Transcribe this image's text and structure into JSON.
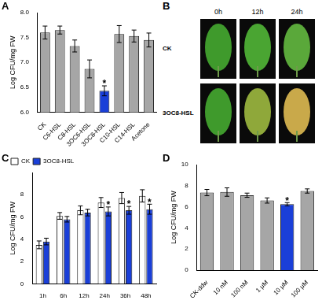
{
  "chart_data": [
    {
      "label": "A",
      "type": "bar",
      "categories": [
        "CK",
        "C6-HSL",
        "C8-HSL",
        "3OC6-HSL",
        "3OC8-HSL",
        "C10-HSL",
        "C14-HSL",
        "Acetone"
      ],
      "values": [
        7.6,
        7.65,
        7.33,
        6.87,
        6.43,
        7.57,
        7.53,
        7.45
      ],
      "errors": [
        0.13,
        0.08,
        0.12,
        0.18,
        0.1,
        0.17,
        0.12,
        0.14
      ],
      "significance": [
        null,
        null,
        null,
        null,
        "*",
        null,
        null,
        null
      ],
      "colors": [
        "#a6a6a6",
        "#a6a6a6",
        "#a6a6a6",
        "#a6a6a6",
        "#1a3fd8",
        "#a6a6a6",
        "#a6a6a6",
        "#a6a6a6"
      ],
      "y_label": "Log CFU/mg FW",
      "ylim": [
        6,
        8
      ],
      "yticks": [
        {
          "value": 6,
          "label": "6.0"
        },
        {
          "value": 6.5,
          "label": "6.5"
        },
        {
          "value": 7,
          "label": "7.0"
        },
        {
          "value": 7.5,
          "label": "7.5"
        },
        {
          "value": 8,
          "label": "8.0"
        }
      ],
      "grid": false
    },
    {
      "label": "C",
      "type": "bar",
      "categories": [
        "1h",
        "6h",
        "12h",
        "24h",
        "36h",
        "48h"
      ],
      "series": [
        {
          "name": "CK",
          "color": "#ffffff",
          "values": [
            3.5,
            6.1,
            6.6,
            7.3,
            7.7,
            7.9
          ],
          "errors": [
            0.35,
            0.3,
            0.4,
            0.45,
            0.5,
            0.55
          ]
        },
        {
          "name": "3OC8-HSL",
          "color": "#1a3fd8",
          "values": [
            3.8,
            5.8,
            6.4,
            6.5,
            6.6,
            6.7
          ],
          "errors": [
            0.3,
            0.25,
            0.3,
            0.4,
            0.35,
            0.45
          ],
          "significance": [
            null,
            null,
            null,
            "*",
            "*",
            "*"
          ]
        }
      ],
      "y_label": "Log CFU/mg FW",
      "ylim": [
        0,
        10
      ],
      "yticks": [
        0,
        2,
        4,
        6,
        8
      ],
      "legend": "top-left",
      "grid": false
    },
    {
      "label": "D",
      "type": "bar",
      "categories": [
        "CK-ddw",
        "10 nM",
        "100 nM",
        "1 μM",
        "10 μM",
        "100 μM"
      ],
      "values": [
        7.35,
        7.4,
        7.1,
        6.6,
        6.25,
        7.5
      ],
      "errors": [
        0.3,
        0.4,
        0.2,
        0.25,
        0.15,
        0.2
      ],
      "significance": [
        null,
        null,
        null,
        null,
        "*",
        null
      ],
      "colors": [
        "#a6a6a6",
        "#a6a6a6",
        "#a6a6a6",
        "#a6a6a6",
        "#1a3fd8",
        "#a6a6a6"
      ],
      "y_label": "Log CFU/mg FW",
      "ylim": [
        0,
        10
      ],
      "yticks": [
        0,
        2,
        4,
        6,
        8,
        10
      ],
      "grid": false
    }
  ],
  "image_panel": {
    "label": "B",
    "columns": [
      "0h",
      "12h",
      "24h"
    ],
    "rows": [
      "CK",
      "3OC8-HSL"
    ]
  }
}
